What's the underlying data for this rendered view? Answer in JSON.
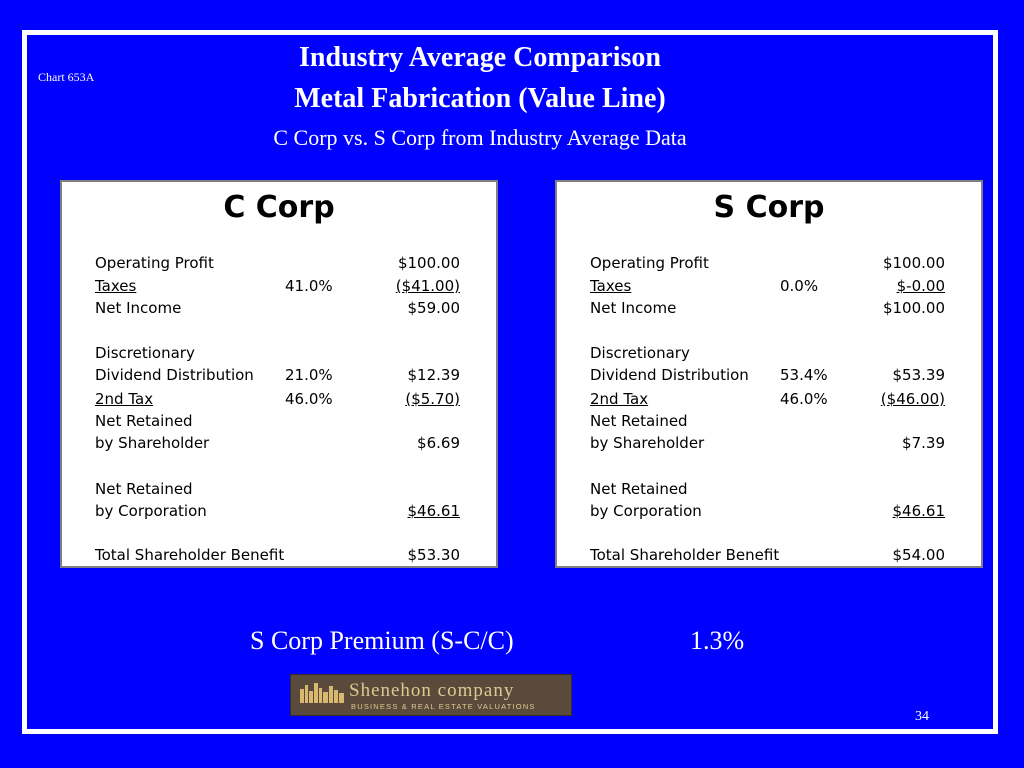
{
  "chart_id": "Chart 653A",
  "title_line1": "Industry Average Comparison",
  "title_line2": "Metal Fabrication (Value Line)",
  "subtitle": "C Corp vs. S Corp from Industry Average Data",
  "c_corp": {
    "heading": "C Corp",
    "rows": [
      {
        "label": "Operating Profit",
        "pct": "",
        "amount": "$100.00"
      },
      {
        "label": "Taxes",
        "pct": "41.0%",
        "amount": "($41.00)"
      },
      {
        "label": "Net Income",
        "pct": "",
        "amount": "$59.00"
      },
      {
        "label": "Discretionary",
        "pct": "",
        "amount": ""
      },
      {
        "label": "Dividend Distribution",
        "pct": "21.0%",
        "amount": "$12.39"
      },
      {
        "label": "2nd Tax",
        "pct": "46.0%",
        "amount": "($5.70)"
      },
      {
        "label": "Net Retained",
        "pct": "",
        "amount": ""
      },
      {
        "label": "by Shareholder",
        "pct": "",
        "amount": "$6.69"
      },
      {
        "label": "Net Retained",
        "pct": "",
        "amount": ""
      },
      {
        "label": "by Corporation",
        "pct": "",
        "amount": "$46.61"
      },
      {
        "label": "Total Shareholder Benefit",
        "pct": "",
        "amount": "$53.30"
      }
    ]
  },
  "s_corp": {
    "heading": "S Corp",
    "rows": [
      {
        "label": "Operating Profit",
        "pct": "",
        "amount": "$100.00"
      },
      {
        "label": "Taxes",
        "pct": "0.0%",
        "amount": "$-0.00"
      },
      {
        "label": "Net Income",
        "pct": "",
        "amount": "$100.00"
      },
      {
        "label": "Discretionary",
        "pct": "",
        "amount": ""
      },
      {
        "label": "Dividend Distribution",
        "pct": "53.4%",
        "amount": "$53.39"
      },
      {
        "label": "2nd Tax",
        "pct": "46.0%",
        "amount": "($46.00)"
      },
      {
        "label": "Net Retained",
        "pct": "",
        "amount": ""
      },
      {
        "label": "by Shareholder",
        "pct": "",
        "amount": "$7.39"
      },
      {
        "label": "Net Retained",
        "pct": "",
        "amount": ""
      },
      {
        "label": "by Corporation",
        "pct": "",
        "amount": "$46.61"
      },
      {
        "label": "Total Shareholder Benefit",
        "pct": "",
        "amount": "$54.00"
      }
    ]
  },
  "premium_label": "S Corp Premium (S-C/C)",
  "premium_value": "1.3%",
  "logo": {
    "name": "Shenehon company",
    "tagline": "BUSINESS & REAL ESTATE VALUATIONS"
  },
  "page_number": "34"
}
